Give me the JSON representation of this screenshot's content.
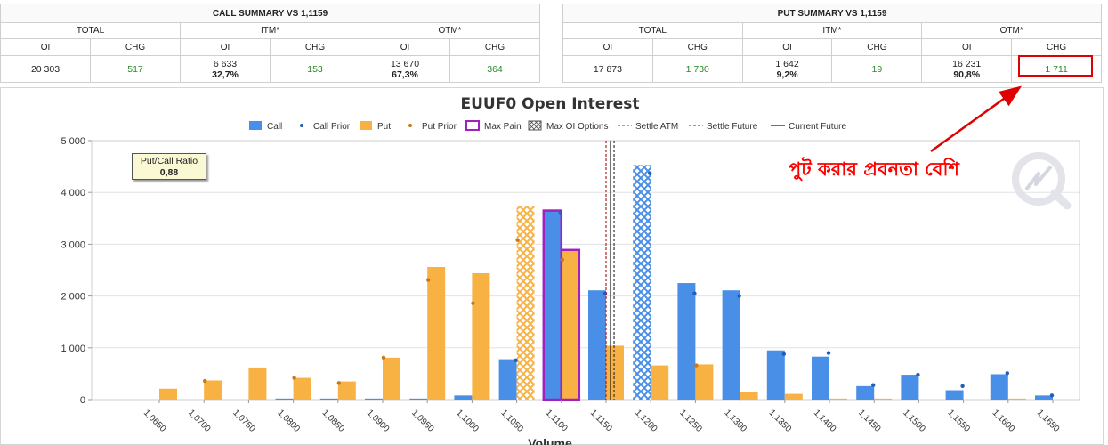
{
  "call_summary": {
    "title": "CALL SUMMARY VS 1,1159",
    "groups": [
      "TOTAL",
      "ITM*",
      "OTM*"
    ],
    "subheaders": [
      "OI",
      "CHG",
      "OI",
      "CHG",
      "OI",
      "CHG"
    ],
    "total": {
      "oi": "20 303",
      "chg": "517"
    },
    "itm": {
      "oi": "6 633",
      "pct": "32,7%",
      "chg": "153"
    },
    "otm": {
      "oi": "13 670",
      "pct": "67,3%",
      "chg": "364"
    }
  },
  "put_summary": {
    "title": "PUT SUMMARY VS 1,1159",
    "groups": [
      "TOTAL",
      "ITM*",
      "OTM*"
    ],
    "subheaders": [
      "OI",
      "CHG",
      "OI",
      "CHG",
      "OI",
      "CHG"
    ],
    "total": {
      "oi": "17 873",
      "chg": "1 730"
    },
    "itm": {
      "oi": "1 642",
      "pct": "9,2%",
      "chg": "19"
    },
    "otm": {
      "oi": "16 231",
      "pct": "90,8%",
      "chg": "1 711"
    }
  },
  "annotation": {
    "text": "পুট করার প্রবনতা বেশি",
    "color": "#ff0000"
  },
  "ratio_box": {
    "label": "Put/Call Ratio",
    "value": "0,88"
  },
  "colors": {
    "call": "#4a8fe7",
    "put": "#f8b143",
    "call_prior": "#1f5fbf",
    "put_prior": "#c8781a",
    "max_pain": "#a020c0",
    "settle_atm": "#b22222",
    "settle_future": "#333333",
    "current_future": "#111111",
    "arrow": "#e00000"
  },
  "chart_data": {
    "type": "bar",
    "title": "EUUF0 Open Interest",
    "xlabel": "Volume",
    "legend": [
      "Call",
      "Call Prior",
      "Put",
      "Put Prior",
      "Max Pain",
      "Max OI Options",
      "Settle ATM",
      "Settle Future",
      "Current Future"
    ],
    "legend_position": "top",
    "y_ticks": [
      "0",
      "1 000",
      "2 000",
      "3 000",
      "4 000",
      "5 000"
    ],
    "ylim": [
      0,
      5000
    ],
    "categories": [
      "1,0650",
      "1,0700",
      "1,0750",
      "1,0800",
      "1,0850",
      "1,0900",
      "1,0950",
      "1,1000",
      "1,1050",
      "1,1100",
      "1,1150",
      "1,1200",
      "1,1250",
      "1,1300",
      "1,1350",
      "1,1400",
      "1,1450",
      "1,1500",
      "1,1550",
      "1,1600",
      "1,1650"
    ],
    "series": [
      {
        "name": "Call",
        "values": [
          0,
          0,
          0,
          20,
          20,
          20,
          20,
          80,
          780,
          3650,
          2110,
          4530,
          2250,
          2110,
          950,
          830,
          260,
          480,
          180,
          490,
          80
        ]
      },
      {
        "name": "Call Prior",
        "values": [
          null,
          null,
          null,
          null,
          null,
          null,
          null,
          null,
          760,
          3600,
          2050,
          4370,
          2050,
          2000,
          880,
          900,
          280,
          480,
          260,
          510,
          80
        ]
      },
      {
        "name": "Put",
        "values": [
          210,
          370,
          620,
          420,
          350,
          810,
          2560,
          2440,
          3740,
          2890,
          1040,
          660,
          680,
          140,
          110,
          20,
          20,
          0,
          0,
          20,
          0
        ]
      },
      {
        "name": "Put Prior",
        "values": [
          null,
          360,
          null,
          420,
          320,
          810,
          2310,
          1860,
          3080,
          2700,
          null,
          null,
          660,
          null,
          null,
          null,
          null,
          null,
          null,
          null,
          null
        ]
      }
    ],
    "max_pain_category": "1,1100",
    "max_oi_options": {
      "call": "1,1200",
      "put": "1,1050"
    },
    "settle_atm": 1.115,
    "settle_future": 1.1159,
    "current_future": 1.1155
  }
}
